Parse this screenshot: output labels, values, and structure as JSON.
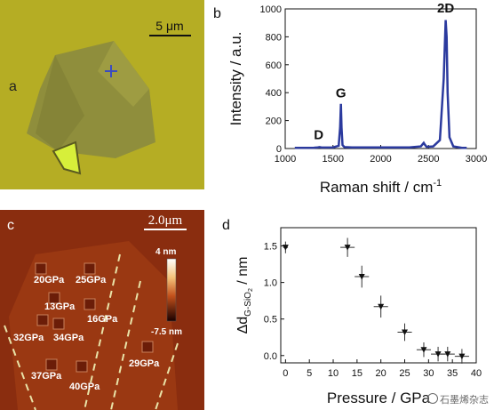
{
  "panels": {
    "a": {
      "label": "a",
      "scale_bar": "5 μm",
      "colors": {
        "background": "#b5ad24",
        "flake": "#8f8e3c",
        "marker": "#3b4cc0"
      }
    },
    "c": {
      "label": "c",
      "scale_bar": "2.0μm",
      "colorbar": {
        "max": "4 nm",
        "min": "-7.5 nm"
      },
      "indent_labels": [
        "20GPa",
        "25GPa",
        "13GPa",
        "16GPa",
        "32GPa",
        "34GPa",
        "29GPa",
        "37GPa",
        "40GPa"
      ]
    },
    "b": {
      "label": "b"
    },
    "d": {
      "label": "d"
    }
  },
  "chart_data": [
    {
      "type": "line",
      "panel": "b",
      "xlabel": "Raman shift / cm",
      "xlabel_superscript": "-1",
      "ylabel": "Intensity / a.u.",
      "xlim": [
        1000,
        3000
      ],
      "ylim": [
        0,
        1000
      ],
      "xticks": [
        1000,
        1500,
        2000,
        2500,
        3000
      ],
      "yticks": [
        0,
        200,
        400,
        600,
        800,
        1000
      ],
      "grid": false,
      "color": "#2b3a9e",
      "x": [
        1100,
        1300,
        1340,
        1360,
        1380,
        1500,
        1560,
        1575,
        1583,
        1590,
        1600,
        1620,
        1700,
        1900,
        2100,
        2300,
        2420,
        2450,
        2460,
        2480,
        2550,
        2620,
        2660,
        2680,
        2690,
        2700,
        2720,
        2760,
        2850,
        2900
      ],
      "y": [
        5,
        6,
        8,
        10,
        7,
        8,
        20,
        150,
        320,
        150,
        25,
        10,
        8,
        8,
        8,
        8,
        15,
        40,
        30,
        12,
        15,
        60,
        500,
        920,
        800,
        400,
        80,
        15,
        5,
        5
      ],
      "annotations": [
        {
          "text": "D",
          "x": 1350,
          "y": 40
        },
        {
          "text": "G",
          "x": 1583,
          "y": 340
        },
        {
          "text": "2D",
          "x": 2680,
          "y": 950
        }
      ]
    },
    {
      "type": "scatter",
      "panel": "d",
      "xlabel": "Pressure / GPa",
      "ylabel_prefix": "Δd",
      "ylabel_subscript": "G-SiO",
      "ylabel_subscript2": "2",
      "ylabel_suffix": " / nm",
      "xlim": [
        -1,
        40
      ],
      "ylim": [
        -0.1,
        1.75
      ],
      "xticks": [
        0,
        5,
        10,
        15,
        20,
        25,
        30,
        35,
        40
      ],
      "yticks": [
        0.0,
        0.5,
        1.0,
        1.5
      ],
      "grid": false,
      "points": [
        {
          "x": 0,
          "y": 1.48,
          "xerr": 0.5,
          "yerr": 0.08
        },
        {
          "x": 13,
          "y": 1.48,
          "xerr": 1.5,
          "yerr": 0.13
        },
        {
          "x": 16,
          "y": 1.08,
          "xerr": 1.5,
          "yerr": 0.15
        },
        {
          "x": 20,
          "y": 0.67,
          "xerr": 1.5,
          "yerr": 0.15
        },
        {
          "x": 25,
          "y": 0.32,
          "xerr": 1.5,
          "yerr": 0.12
        },
        {
          "x": 29,
          "y": 0.08,
          "xerr": 1.5,
          "yerr": 0.1
        },
        {
          "x": 32,
          "y": 0.02,
          "xerr": 1.5,
          "yerr": 0.1
        },
        {
          "x": 34,
          "y": 0.02,
          "xerr": 1.5,
          "yerr": 0.1
        },
        {
          "x": 37,
          "y": -0.01,
          "xerr": 1.5,
          "yerr": 0.1
        }
      ]
    }
  ],
  "watermark": "石墨烯杂志"
}
